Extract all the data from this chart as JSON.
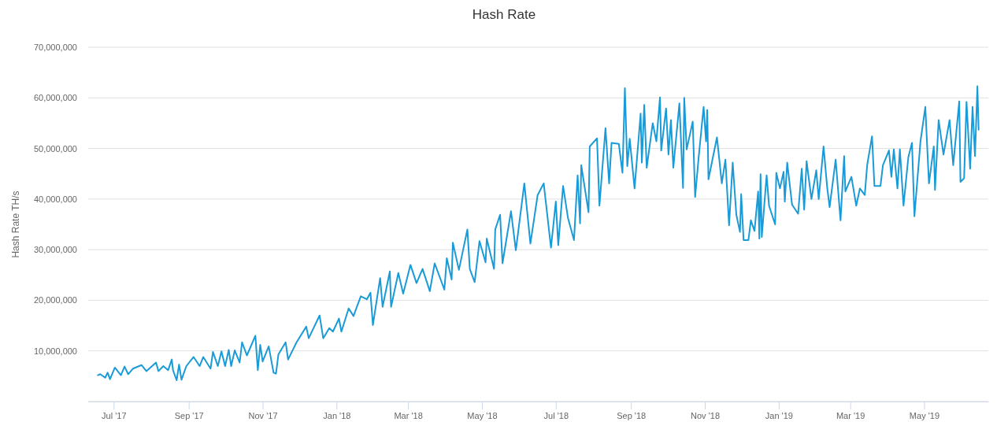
{
  "chart_data": {
    "type": "line",
    "title": "Hash Rate",
    "ylabel": "Hash Rate TH/s",
    "xlim": [
      "2017-06-10",
      "2019-06-23"
    ],
    "xticks": [
      {
        "value": "2017-07-01",
        "label": "Jul '17"
      },
      {
        "value": "2017-09-01",
        "label": "Sep '17"
      },
      {
        "value": "2017-11-01",
        "label": "Nov '17"
      },
      {
        "value": "2018-01-01",
        "label": "Jan '18"
      },
      {
        "value": "2018-03-01",
        "label": "Mar '18"
      },
      {
        "value": "2018-05-01",
        "label": "May '18"
      },
      {
        "value": "2018-07-01",
        "label": "Jul '18"
      },
      {
        "value": "2018-09-01",
        "label": "Sep '18"
      },
      {
        "value": "2018-11-01",
        "label": "Nov '18"
      },
      {
        "value": "2019-01-01",
        "label": "Jan '19"
      },
      {
        "value": "2019-03-01",
        "label": "Mar '19"
      },
      {
        "value": "2019-05-01",
        "label": "May '19"
      }
    ],
    "ylim": [
      0,
      70000000
    ],
    "yticks": [
      {
        "value": 0,
        "label": null
      },
      {
        "value": 10000000,
        "label": "10,000,000"
      },
      {
        "value": 20000000,
        "label": "20,000,000"
      },
      {
        "value": 30000000,
        "label": "30,000,000"
      },
      {
        "value": 40000000,
        "label": "40,000,000"
      },
      {
        "value": 50000000,
        "label": "50,000,000"
      },
      {
        "value": 60000000,
        "label": "60,000,000"
      },
      {
        "value": 70000000,
        "label": "70,000,000"
      }
    ],
    "grid": "y",
    "marker": "none",
    "line_style": "solid",
    "series": [
      {
        "color": "#1a9bd7",
        "x": [
          "2017-06-18",
          "2017-06-20",
          "2017-06-24",
          "2017-06-26",
          "2017-06-28",
          "2017-07-02",
          "2017-07-07",
          "2017-07-10",
          "2017-07-13",
          "2017-07-17",
          "2017-07-24",
          "2017-07-28",
          "2017-08-05",
          "2017-08-07",
          "2017-08-11",
          "2017-08-15",
          "2017-08-18",
          "2017-08-19",
          "2017-08-22",
          "2017-08-24",
          "2017-08-26",
          "2017-08-30",
          "2017-09-05",
          "2017-09-10",
          "2017-09-13",
          "2017-09-19",
          "2017-09-21",
          "2017-09-25",
          "2017-09-28",
          "2017-10-01",
          "2017-10-04",
          "2017-10-06",
          "2017-10-09",
          "2017-10-13",
          "2017-10-15",
          "2017-10-19",
          "2017-10-26",
          "2017-10-28",
          "2017-10-30",
          "2017-11-01",
          "2017-11-06",
          "2017-11-10",
          "2017-11-12",
          "2017-11-14",
          "2017-11-20",
          "2017-11-22",
          "2017-11-29",
          "2017-12-07",
          "2017-12-09",
          "2017-12-18",
          "2017-12-21",
          "2017-12-26",
          "2017-12-29",
          "2018-01-03",
          "2018-01-05",
          "2018-01-11",
          "2018-01-15",
          "2018-01-21",
          "2018-01-26",
          "2018-01-29",
          "2018-01-31",
          "2018-02-06",
          "2018-02-08",
          "2018-02-14",
          "2018-02-15",
          "2018-02-21",
          "2018-02-25",
          "2018-03-03",
          "2018-03-08",
          "2018-03-13",
          "2018-03-19",
          "2018-03-23",
          "2018-03-31",
          "2018-04-02",
          "2018-04-06",
          "2018-04-07",
          "2018-04-12",
          "2018-04-19",
          "2018-04-21",
          "2018-04-25",
          "2018-04-29",
          "2018-05-04",
          "2018-05-05",
          "2018-05-11",
          "2018-05-12",
          "2018-05-16",
          "2018-05-18",
          "2018-05-25",
          "2018-05-29",
          "2018-06-05",
          "2018-06-10",
          "2018-06-16",
          "2018-06-21",
          "2018-06-27",
          "2018-07-01",
          "2018-07-03",
          "2018-07-07",
          "2018-07-11",
          "2018-07-16",
          "2018-07-19",
          "2018-07-21",
          "2018-07-22",
          "2018-07-28",
          "2018-07-29",
          "2018-08-04",
          "2018-08-06",
          "2018-08-11",
          "2018-08-14",
          "2018-08-16",
          "2018-08-22",
          "2018-08-25",
          "2018-08-27",
          "2018-08-29",
          "2018-08-31",
          "2018-09-04",
          "2018-09-09",
          "2018-09-10",
          "2018-09-12",
          "2018-09-14",
          "2018-09-19",
          "2018-09-22",
          "2018-09-25",
          "2018-09-26",
          "2018-09-30",
          "2018-10-02",
          "2018-10-04",
          "2018-10-06",
          "2018-10-11",
          "2018-10-14",
          "2018-10-15",
          "2018-10-17",
          "2018-10-22",
          "2018-10-24",
          "2018-10-27",
          "2018-10-31",
          "2018-11-02",
          "2018-11-03",
          "2018-11-04",
          "2018-11-11",
          "2018-11-15",
          "2018-11-18",
          "2018-11-21",
          "2018-11-24",
          "2018-11-27",
          "2018-11-30",
          "2018-12-01",
          "2018-12-03",
          "2018-12-07",
          "2018-12-09",
          "2018-12-12",
          "2018-12-15",
          "2018-12-16",
          "2018-12-17",
          "2018-12-18",
          "2018-12-22",
          "2018-12-24",
          "2018-12-29",
          "2018-12-30",
          "2019-01-02",
          "2019-01-05",
          "2019-01-06",
          "2019-01-08",
          "2019-01-12",
          "2019-01-17",
          "2019-01-20",
          "2019-01-22",
          "2019-01-24",
          "2019-01-28",
          "2019-02-01",
          "2019-02-03",
          "2019-02-07",
          "2019-02-10",
          "2019-02-12",
          "2019-02-17",
          "2019-02-21",
          "2019-02-24",
          "2019-02-25",
          "2019-03-02",
          "2019-03-06",
          "2019-03-09",
          "2019-03-13",
          "2019-03-15",
          "2019-03-19",
          "2019-03-21",
          "2019-03-26",
          "2019-03-28",
          "2019-04-02",
          "2019-04-04",
          "2019-04-06",
          "2019-04-09",
          "2019-04-11",
          "2019-04-14",
          "2019-04-18",
          "2019-04-21",
          "2019-04-23",
          "2019-04-28",
          "2019-05-02",
          "2019-05-05",
          "2019-05-09",
          "2019-05-10",
          "2019-05-13",
          "2019-05-17",
          "2019-05-22",
          "2019-05-25",
          "2019-05-30",
          "2019-05-31",
          "2019-06-03",
          "2019-06-05",
          "2019-06-08",
          "2019-06-10",
          "2019-06-12",
          "2019-06-14",
          "2019-06-15"
        ],
        "values": [
          5200000,
          5400000,
          4700000,
          5700000,
          4400000,
          6700000,
          5200000,
          6900000,
          5400000,
          6500000,
          7200000,
          6000000,
          7700000,
          6000000,
          7000000,
          6200000,
          8300000,
          6200000,
          4200000,
          7300000,
          4300000,
          7000000,
          8800000,
          7000000,
          8800000,
          6500000,
          9800000,
          7000000,
          9900000,
          7000000,
          10200000,
          7000000,
          10100000,
          7700000,
          11700000,
          9100000,
          13000000,
          6200000,
          11200000,
          7900000,
          10900000,
          5700000,
          5500000,
          9300000,
          11700000,
          8300000,
          11700000,
          14800000,
          12500000,
          17000000,
          12500000,
          14500000,
          13800000,
          16400000,
          13800000,
          18400000,
          16900000,
          20800000,
          20200000,
          21500000,
          15100000,
          24400000,
          18700000,
          25700000,
          18700000,
          25400000,
          21300000,
          27000000,
          23400000,
          26200000,
          21800000,
          27300000,
          22100000,
          28300000,
          24100000,
          31400000,
          26000000,
          34000000,
          26200000,
          23600000,
          31700000,
          27500000,
          32200000,
          26200000,
          34000000,
          36900000,
          27300000,
          37600000,
          29900000,
          43100000,
          31200000,
          40800000,
          43100000,
          30400000,
          39500000,
          30900000,
          42600000,
          36300000,
          31900000,
          44700000,
          35200000,
          46700000,
          37400000,
          50400000,
          52000000,
          38700000,
          54000000,
          43100000,
          51100000,
          50900000,
          45200000,
          61900000,
          46500000,
          51900000,
          42100000,
          56900000,
          47200000,
          58600000,
          46200000,
          55000000,
          51400000,
          60100000,
          49600000,
          57900000,
          48800000,
          55600000,
          46200000,
          58900000,
          42200000,
          60000000,
          49800000,
          55300000,
          40400000,
          48500000,
          58200000,
          51400000,
          57600000,
          43900000,
          52200000,
          43100000,
          47800000,
          34800000,
          47200000,
          36900000,
          33500000,
          41000000,
          31900000,
          31900000,
          35800000,
          33700000,
          41500000,
          32200000,
          44900000,
          32500000,
          44700000,
          38700000,
          35000000,
          45200000,
          42100000,
          45400000,
          39500000,
          47200000,
          38900000,
          37100000,
          46000000,
          37900000,
          47500000,
          40000000,
          45700000,
          40000000,
          50400000,
          42300000,
          38400000,
          47800000,
          35800000,
          48500000,
          41500000,
          44400000,
          38700000,
          42100000,
          40800000,
          46700000,
          52400000,
          42600000,
          42600000,
          46700000,
          49600000,
          44400000,
          49800000,
          42100000,
          49800000,
          38700000,
          48300000,
          51100000,
          36600000,
          51400000,
          58200000,
          43100000,
          50400000,
          41800000,
          55600000,
          48800000,
          55600000,
          46700000,
          59300000,
          43400000,
          44100000,
          59200000,
          46000000,
          58200000,
          48500000,
          62300000,
          53700000
        ]
      }
    ]
  }
}
